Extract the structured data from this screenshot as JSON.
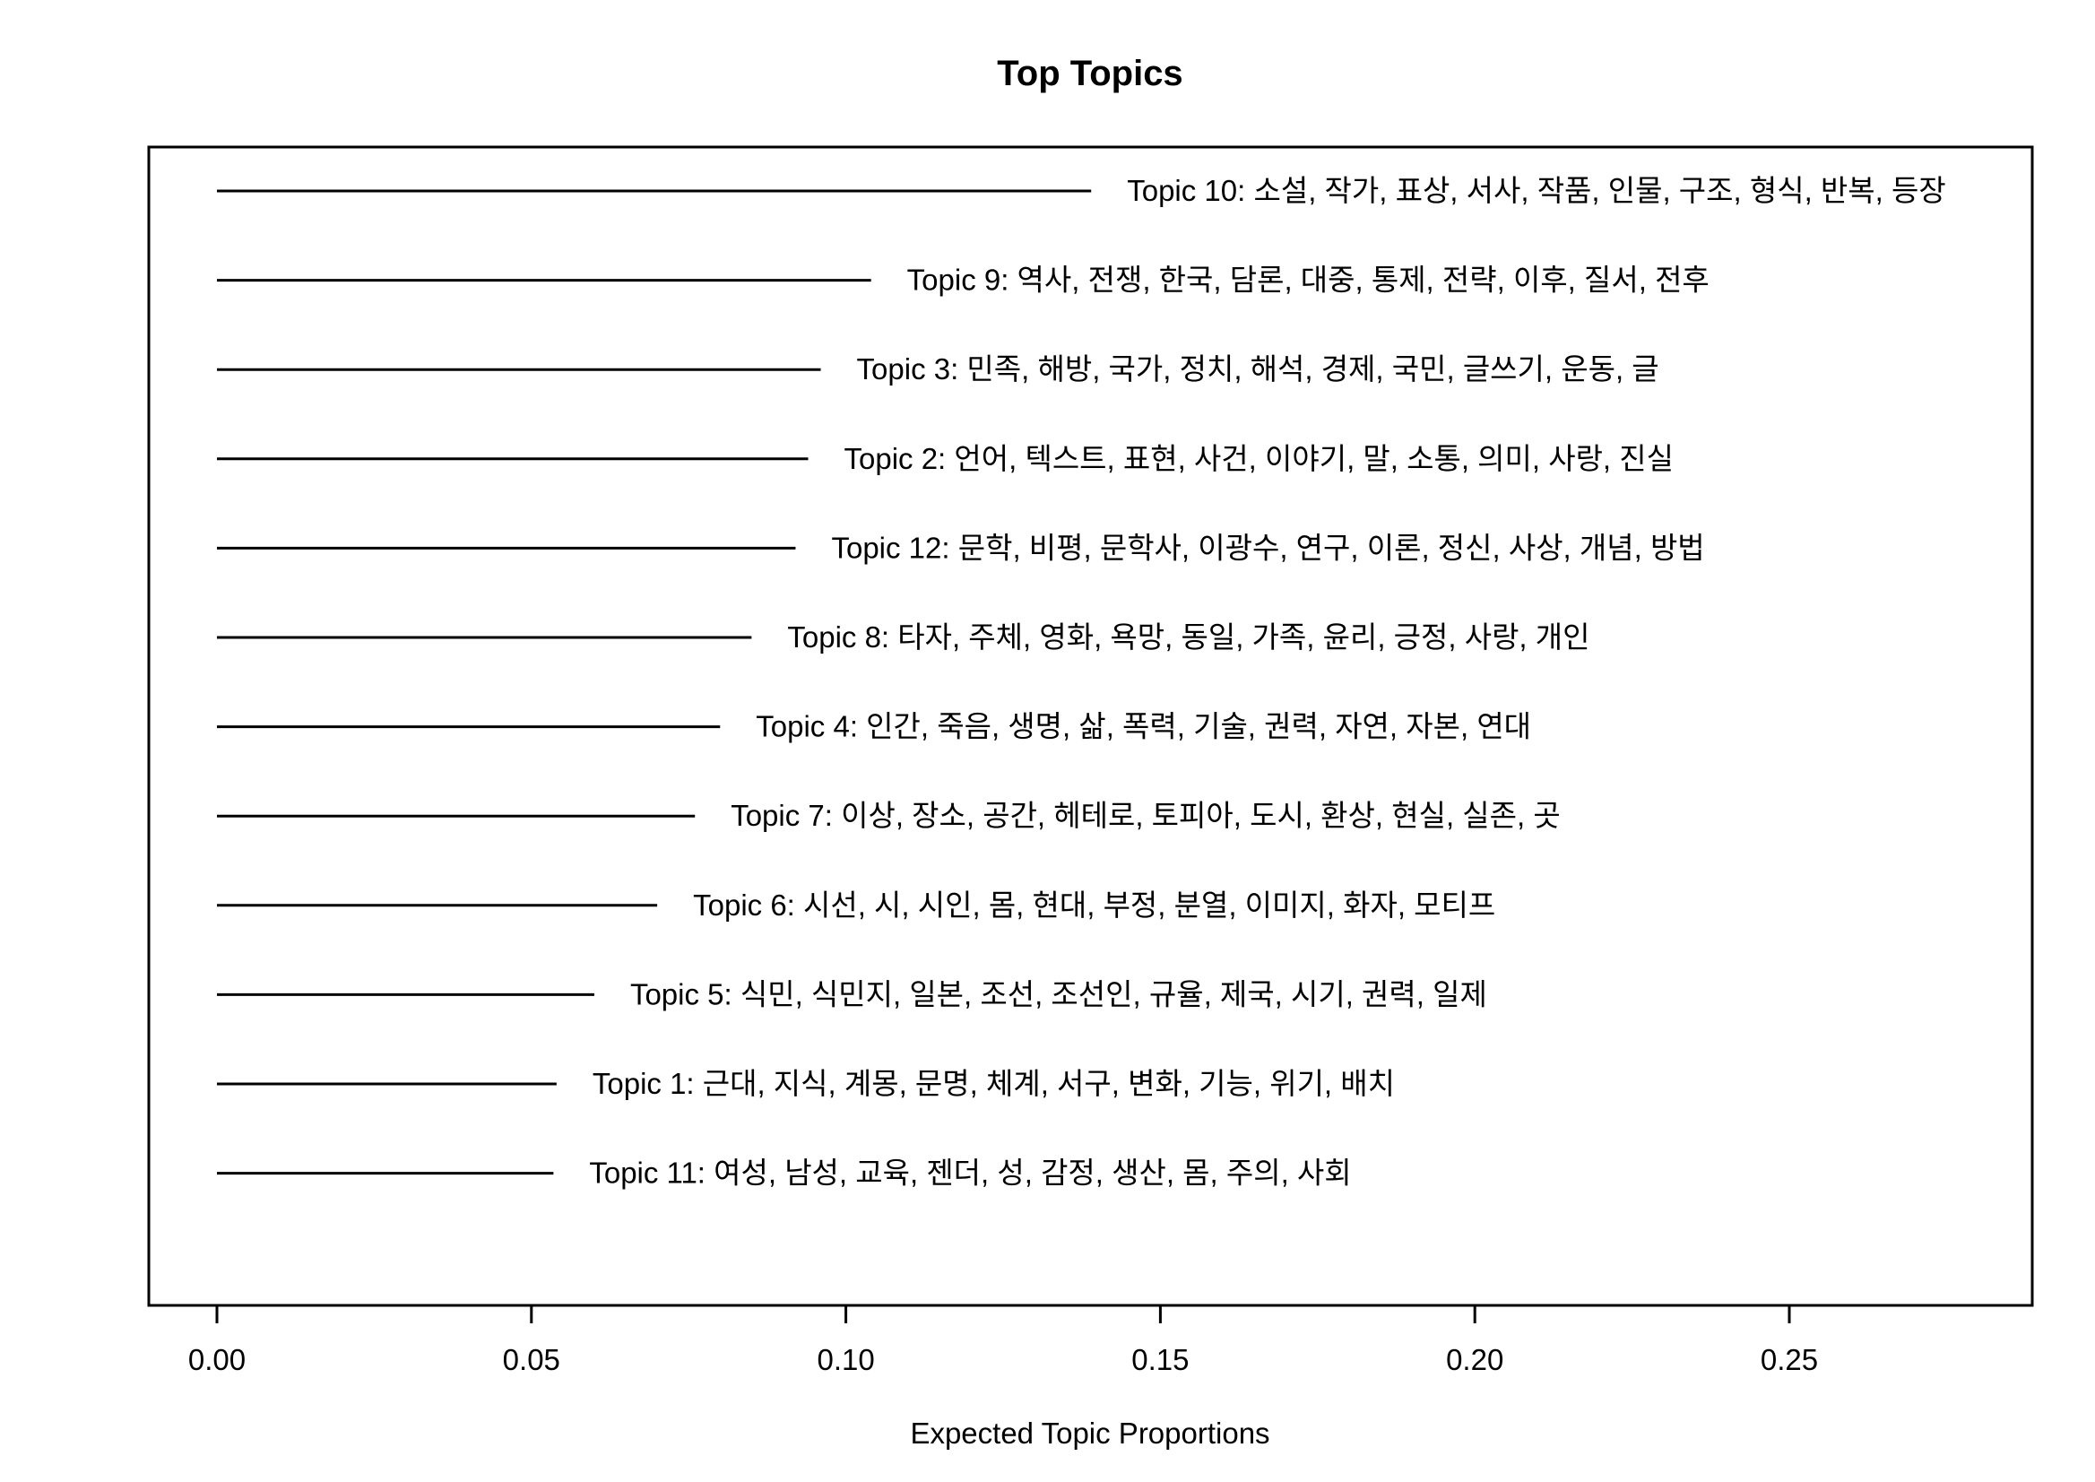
{
  "chart_data": {
    "type": "bar",
    "orientation": "horizontal",
    "title": "Top Topics",
    "xlabel": "Expected Topic Proportions",
    "ylabel": "",
    "xlim": [
      0,
      0.29
    ],
    "xticks": [
      0.0,
      0.05,
      0.1,
      0.15,
      0.2,
      0.25
    ],
    "xtick_labels": [
      "0.00",
      "0.05",
      "0.10",
      "0.15",
      "0.20",
      "0.25"
    ],
    "grid": false,
    "legend": "none",
    "series": [
      {
        "name": "Expected Topic Proportions",
        "items": [
          {
            "label": "Topic 10: 소설, 작가, 표상, 서사, 작품, 인물, 구조, 형식, 반복, 등장",
            "value": 0.139
          },
          {
            "label": "Topic 9: 역사, 전쟁, 한국, 담론, 대중, 통제, 전략, 이후, 질서, 전후",
            "value": 0.104
          },
          {
            "label": "Topic 3: 민족, 해방, 국가, 정치, 해석, 경제, 국민, 글쓰기, 운동, 글",
            "value": 0.096
          },
          {
            "label": "Topic 2: 언어, 텍스트, 표현, 사건, 이야기, 말, 소통, 의미, 사랑, 진실",
            "value": 0.094
          },
          {
            "label": "Topic 12: 문학, 비평, 문학사, 이광수, 연구, 이론, 정신, 사상, 개념, 방법",
            "value": 0.092
          },
          {
            "label": "Topic 8: 타자, 주체, 영화, 욕망, 동일, 가족, 윤리, 긍정, 사랑, 개인",
            "value": 0.085
          },
          {
            "label": "Topic 4: 인간, 죽음, 생명, 삶, 폭력, 기술, 권력, 자연, 자본, 연대",
            "value": 0.08
          },
          {
            "label": "Topic 7: 이상, 장소, 공간, 헤테로, 토피아, 도시, 환상, 현실, 실존, 곳",
            "value": 0.076
          },
          {
            "label": "Topic 6: 시선, 시, 시인, 몸, 현대, 부정, 분열, 이미지, 화자, 모티프",
            "value": 0.07
          },
          {
            "label": "Topic 5: 식민, 식민지, 일본, 조선, 조선인, 규율, 제국, 시기, 권력, 일제",
            "value": 0.06
          },
          {
            "label": "Topic 1: 근대, 지식, 계몽, 문명, 체계, 서구, 변화, 기능, 위기, 배치",
            "value": 0.054
          },
          {
            "label": "Topic 11: 여성, 남성, 교육, 젠더, 성, 감정, 생산, 몸, 주의, 사회",
            "value": 0.0535
          }
        ]
      }
    ]
  }
}
